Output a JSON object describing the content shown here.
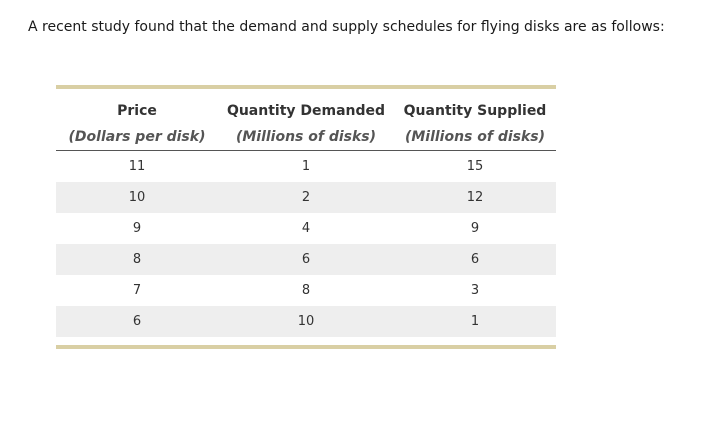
{
  "intro": "A recent study found that the demand and supply schedules for flying disks are as follows:",
  "table": {
    "headers": [
      "Price",
      "Quantity Demanded",
      "Quantity Supplied"
    ],
    "subheaders": [
      "(Dollars per disk)",
      "(Millions of disks)",
      "(Millions of disks)"
    ],
    "rows": [
      [
        "11",
        "1",
        "15"
      ],
      [
        "10",
        "2",
        "12"
      ],
      [
        "9",
        "4",
        "9"
      ],
      [
        "8",
        "6",
        "6"
      ],
      [
        "7",
        "8",
        "3"
      ],
      [
        "6",
        "10",
        "1"
      ]
    ]
  },
  "colors": {
    "rule": "#d9cfa4",
    "row_shade": "#eeeeee"
  }
}
